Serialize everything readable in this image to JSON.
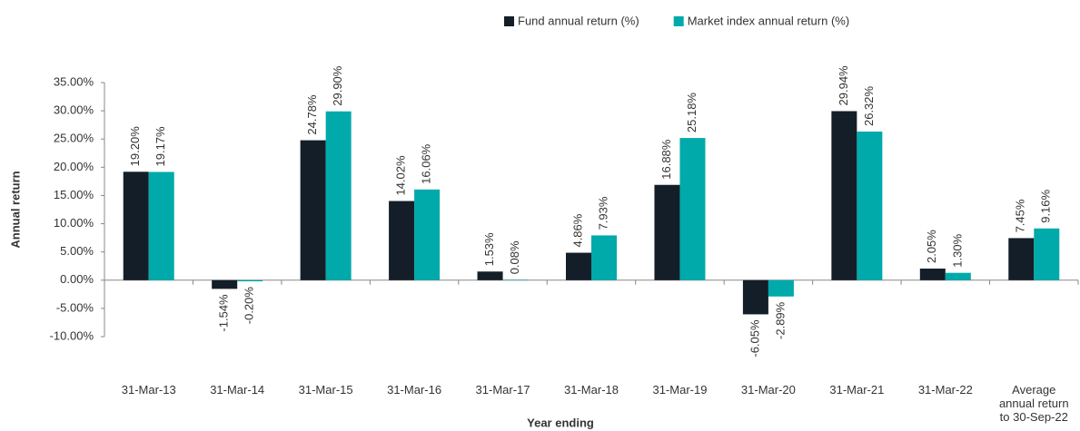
{
  "chart_data": {
    "type": "bar",
    "x_label": "Year ending",
    "y_label": "Annual return",
    "categories": [
      "31-Mar-13",
      "31-Mar-14",
      "31-Mar-15",
      "31-Mar-16",
      "31-Mar-17",
      "31-Mar-18",
      "31-Mar-19",
      "31-Mar-20",
      "31-Mar-21",
      "31-Mar-22",
      "Average annual return to 30-Sep-22"
    ],
    "series": [
      {
        "name": "Fund annual return (%)",
        "color": "#141e28",
        "values": [
          19.2,
          -1.54,
          24.78,
          14.02,
          1.53,
          4.86,
          16.88,
          -6.05,
          29.94,
          2.05,
          7.45
        ],
        "value_labels": [
          "19.20%",
          "-1.54%",
          "24.78%",
          "14.02%",
          "1.53%",
          "4.86%",
          "16.88%",
          "-6.05%",
          "29.94%",
          "2.05%",
          "7.45%"
        ]
      },
      {
        "name": "Market index annual return (%)",
        "color": "#00a9aa",
        "values": [
          19.17,
          -0.2,
          29.9,
          16.06,
          0.08,
          7.93,
          25.18,
          -2.89,
          26.32,
          1.3,
          9.16
        ],
        "value_labels": [
          "19.17%",
          "-0.20%",
          "29.90%",
          "16.06%",
          "0.08%",
          "7.93%",
          "25.18%",
          "-2.89%",
          "26.32%",
          "1.30%",
          "9.16%"
        ]
      }
    ],
    "ylim": [
      -10,
      35
    ],
    "yticks": [
      {
        "value": -10,
        "label": "-10.00%"
      },
      {
        "value": -5,
        "label": "-5.00%"
      },
      {
        "value": 0,
        "label": "0.00%"
      },
      {
        "value": 5,
        "label": "5.00%"
      },
      {
        "value": 10,
        "label": "10.00%"
      },
      {
        "value": 15,
        "label": "15.00%"
      },
      {
        "value": 20,
        "label": "20.00%"
      },
      {
        "value": 25,
        "label": "25.00%"
      },
      {
        "value": 30,
        "label": "30.00%"
      },
      {
        "value": 35,
        "label": "35.00%"
      }
    ],
    "legend": "top"
  }
}
